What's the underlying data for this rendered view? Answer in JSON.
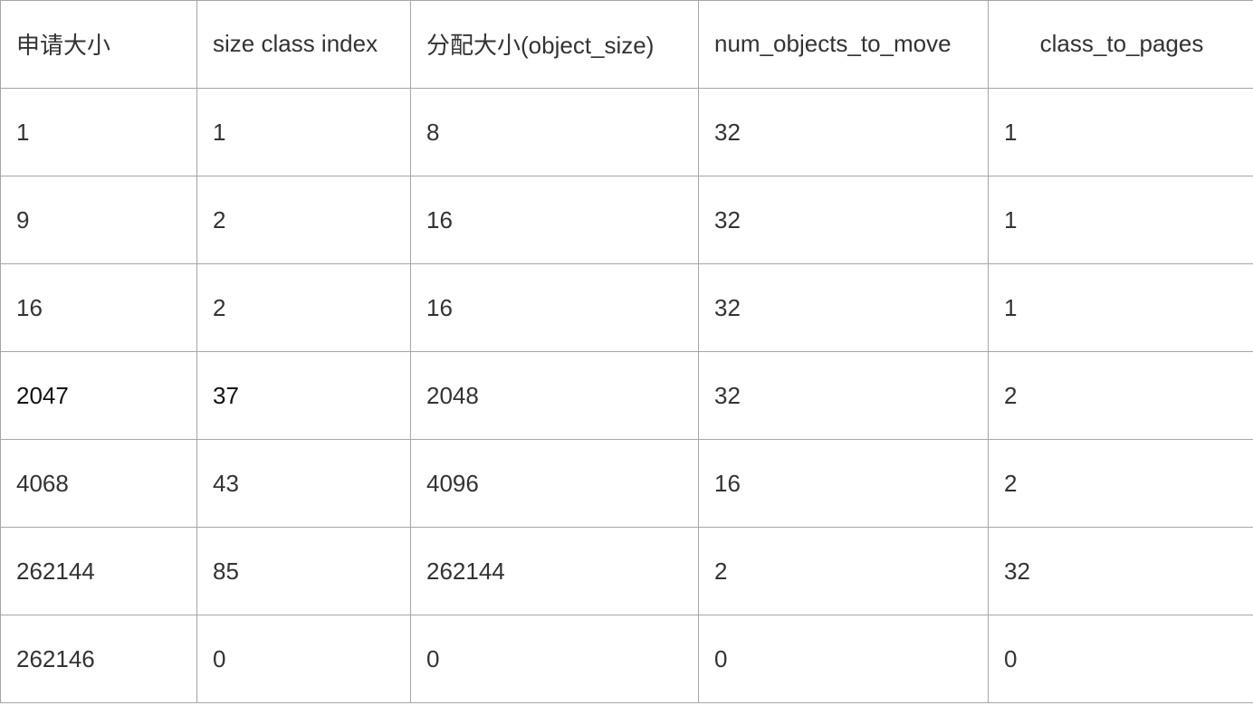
{
  "table": {
    "headers": [
      "申请大小",
      "size class index",
      "分配大小(object_size)",
      "num_objects_to_move",
      "class_to_pages"
    ],
    "rows": [
      [
        "1",
        "1",
        "8",
        "32",
        "1"
      ],
      [
        "9",
        "2",
        "16",
        "32",
        "1"
      ],
      [
        "16",
        "2",
        "16",
        "32",
        "1"
      ],
      [
        "2047",
        "37",
        "2048",
        "32",
        "2"
      ],
      [
        "4068",
        "43",
        "4096",
        "16",
        "2"
      ],
      [
        "262144",
        "85",
        "262144",
        "2",
        "32"
      ],
      [
        "262146",
        "0",
        "0",
        "0",
        "0"
      ]
    ]
  }
}
